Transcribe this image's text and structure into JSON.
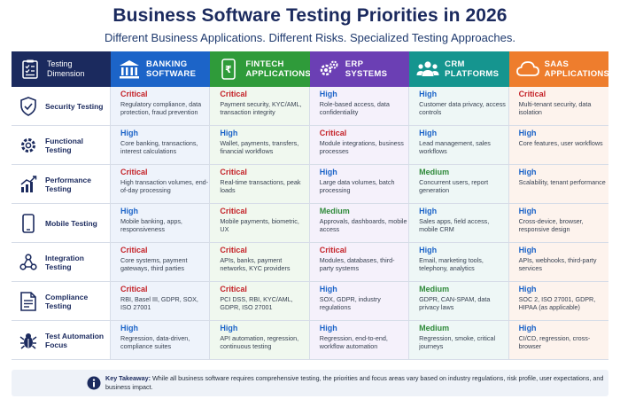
{
  "header": {
    "title": "Business Software Testing Priorities in 2026",
    "subtitle": "Different Business Applications. Different Risks. Specialized Testing Approaches."
  },
  "colors": {
    "navy": "#1b2a5e",
    "banking": "#1c64c8",
    "fintech": "#2f9b3a",
    "erp": "#6b3fb4",
    "crm": "#15958f",
    "saas": "#ee7d2d",
    "critical": "#c42127",
    "high": "#1c64c8",
    "medium": "#2f8a3a"
  },
  "columns": [
    {
      "key": "dimension",
      "label": "Testing Dimension",
      "icon": "checklist-icon"
    },
    {
      "key": "banking",
      "label": "BANKING SOFTWARE",
      "line1": "BANKING",
      "line2": "SOFTWARE",
      "icon": "bank-icon"
    },
    {
      "key": "fintech",
      "label": "FINTECH APPLICATIONS",
      "line1": "FINTECH",
      "line2": "APPLICATIONS",
      "icon": "mobile-money-icon"
    },
    {
      "key": "erp",
      "label": "ERP SYSTEMS",
      "line1": "ERP",
      "line2": "SYSTEMS",
      "icon": "gears-icon"
    },
    {
      "key": "crm",
      "label": "CRM PLATFORMS",
      "line1": "CRM",
      "line2": "PLATFORMS",
      "icon": "users-icon"
    },
    {
      "key": "saas",
      "label": "SAAS APPLICATIONS",
      "line1": "SAAS",
      "line2": "APPLICATIONS",
      "icon": "cloud-icon"
    }
  ],
  "rows": [
    {
      "dimension": "Security Testing",
      "icon": "shield-icon",
      "cells": [
        {
          "level": "Critical",
          "desc": "Regulatory compliance, data protection, fraud prevention"
        },
        {
          "level": "Critical",
          "desc": "Payment security, KYC/AML, transaction integrity"
        },
        {
          "level": "High",
          "desc": "Role-based access, data confidentiality"
        },
        {
          "level": "High",
          "desc": "Customer data privacy, access controls"
        },
        {
          "level": "Critical",
          "desc": "Multi-tenant security, data isolation"
        }
      ]
    },
    {
      "dimension": "Functional Testing",
      "icon": "gear-icon",
      "cells": [
        {
          "level": "High",
          "desc": "Core banking, transactions, interest calculations"
        },
        {
          "level": "High",
          "desc": "Wallet, payments, transfers, financial workflows"
        },
        {
          "level": "Critical",
          "desc": "Module integrations, business processes"
        },
        {
          "level": "High",
          "desc": "Lead management, sales workflows"
        },
        {
          "level": "High",
          "desc": "Core features, user workflows"
        }
      ]
    },
    {
      "dimension": "Performance Testing",
      "icon": "bar-chart-icon",
      "cells": [
        {
          "level": "Critical",
          "desc": "High transaction volumes, end-of-day processing"
        },
        {
          "level": "Critical",
          "desc": "Real-time transactions, peak loads"
        },
        {
          "level": "High",
          "desc": "Large data volumes, batch processing"
        },
        {
          "level": "Medium",
          "desc": "Concurrent users, report generation"
        },
        {
          "level": "High",
          "desc": "Scalability, tenant performance"
        }
      ]
    },
    {
      "dimension": "Mobile Testing",
      "icon": "phone-icon",
      "cells": [
        {
          "level": "High",
          "desc": "Mobile banking, apps, responsiveness"
        },
        {
          "level": "Critical",
          "desc": "Mobile payments, biometric, UX"
        },
        {
          "level": "Medium",
          "desc": "Approvals, dashboards, mobile access"
        },
        {
          "level": "High",
          "desc": "Sales apps, field access, mobile CRM"
        },
        {
          "level": "High",
          "desc": "Cross-device, browser, responsive design"
        }
      ]
    },
    {
      "dimension": "Integration Testing",
      "icon": "network-icon",
      "cells": [
        {
          "level": "Critical",
          "desc": "Core systems, payment gateways, third parties"
        },
        {
          "level": "Critical",
          "desc": "APIs, banks, payment networks, KYC providers"
        },
        {
          "level": "Critical",
          "desc": "Modules, databases, third-party systems"
        },
        {
          "level": "High",
          "desc": "Email, marketing tools, telephony, analytics"
        },
        {
          "level": "High",
          "desc": "APIs, webhooks, third-party services"
        }
      ]
    },
    {
      "dimension": "Compliance Testing",
      "icon": "document-icon",
      "cells": [
        {
          "level": "Critical",
          "desc": "RBI, Basel III, GDPR, SOX, ISO 27001"
        },
        {
          "level": "Critical",
          "desc": "PCI DSS, RBI, KYC/AML, GDPR, ISO 27001"
        },
        {
          "level": "High",
          "desc": "SOX, GDPR, industry regulations"
        },
        {
          "level": "Medium",
          "desc": "GDPR, CAN-SPAM, data privacy laws"
        },
        {
          "level": "High",
          "desc": "SOC 2, ISO 27001, GDPR, HIPAA (as applicable)"
        }
      ]
    },
    {
      "dimension": "Test Automation Focus",
      "icon": "bug-icon",
      "cells": [
        {
          "level": "High",
          "desc": "Regression, data-driven, compliance suites"
        },
        {
          "level": "High",
          "desc": "API automation, regression, continuous testing"
        },
        {
          "level": "High",
          "desc": "Regression, end-to-end, workflow automation"
        },
        {
          "level": "Medium",
          "desc": "Regression, smoke, critical journeys"
        },
        {
          "level": "High",
          "desc": "CI/CD, regression, cross-browser"
        }
      ]
    }
  ],
  "takeaway": {
    "label": "Key Takeaway:",
    "text": "While all business software requires comprehensive testing, the priorities and focus areas vary based on industry regulations, risk profile, user expectations, and business impact.",
    "icon": "info-icon"
  }
}
